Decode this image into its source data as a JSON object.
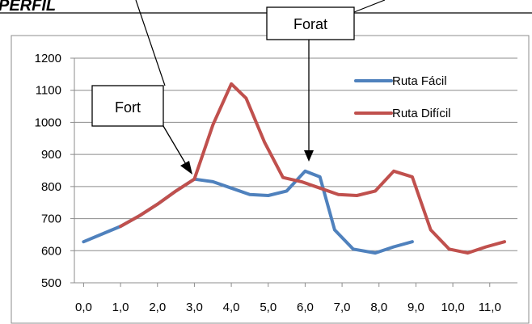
{
  "page": {
    "heading": "PERFIL"
  },
  "callouts": {
    "fort": "Fort",
    "forat": "Forat"
  },
  "chart_data": {
    "type": "line",
    "title": "",
    "xlabel": "",
    "ylabel": "",
    "x_tick_labels": [
      "0,0",
      "1,0",
      "2,0",
      "3,0",
      "4,0",
      "5,0",
      "6,0",
      "7,0",
      "8,0",
      "9,0",
      "10,0",
      "11,0"
    ],
    "xlim": [
      -0.25,
      11.75
    ],
    "ylim": [
      500,
      1200
    ],
    "y_ticks": [
      500,
      600,
      700,
      800,
      900,
      1000,
      1100,
      1200
    ],
    "grid": true,
    "legend_position": "top-right",
    "series": [
      {
        "name": "Ruta Fácil",
        "color": "#4f81bd",
        "x": [
          0.0,
          0.5,
          1.0,
          1.5,
          2.0,
          2.5,
          3.0,
          3.5,
          4.0,
          4.5,
          5.0,
          5.5,
          6.0,
          6.4,
          6.8,
          7.3,
          7.9,
          8.4,
          8.9
        ],
        "y": [
          628,
          652,
          676,
          708,
          745,
          786,
          823,
          815,
          795,
          775,
          772,
          786,
          848,
          830,
          665,
          605,
          593,
          612,
          628
        ]
      },
      {
        "name": "Ruta Difícil",
        "color": "#c0504d",
        "x": [
          1.0,
          1.5,
          2.0,
          2.5,
          3.0,
          3.5,
          4.0,
          4.4,
          4.9,
          5.4,
          5.9,
          6.4,
          6.9,
          7.4,
          7.9,
          8.4,
          8.9,
          9.4,
          9.9,
          10.4,
          10.9,
          11.4
        ],
        "y": [
          676,
          708,
          745,
          786,
          823,
          992,
          1120,
          1075,
          938,
          828,
          815,
          795,
          775,
          772,
          786,
          848,
          830,
          665,
          605,
          593,
          612,
          628
        ]
      }
    ]
  }
}
